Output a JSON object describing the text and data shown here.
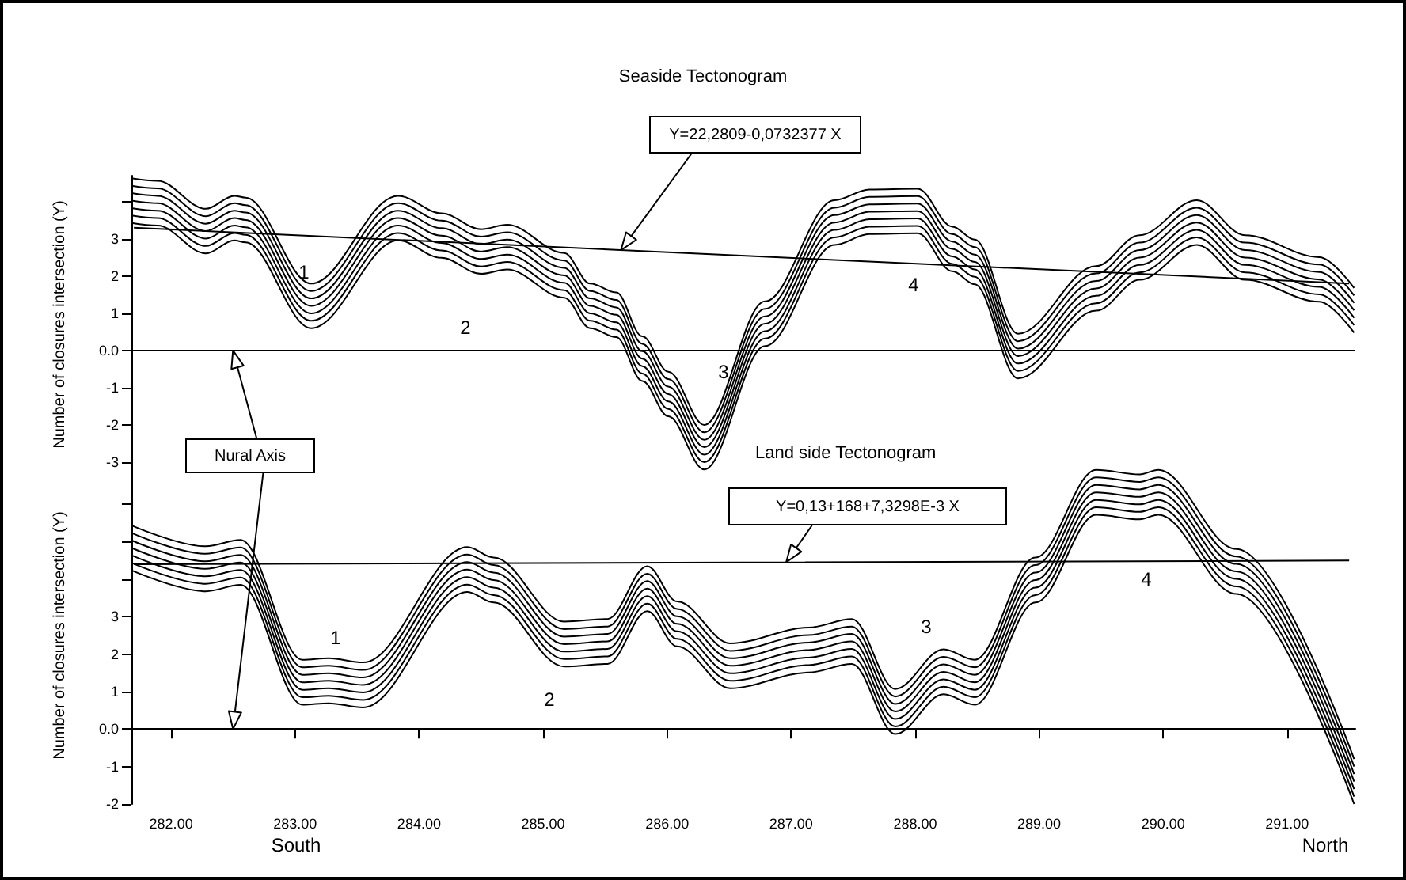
{
  "chart_data": [
    {
      "type": "line",
      "title": "Seaside Tectonogram",
      "ylabel": "Number of closures intersection (Y)",
      "tick_labels": "y",
      "xlim": [
        281.68,
        291.55
      ],
      "ylim": [
        -3.3,
        4.7
      ],
      "yticks": [
        -3,
        -2,
        -1,
        {
          "value": 0,
          "label": "0.0"
        },
        1,
        2,
        3,
        {
          "value": 4,
          "label": null
        }
      ],
      "x": [
        281.68,
        281.89,
        282.28,
        282.51,
        282.6,
        283.13,
        283.83,
        284.18,
        284.5,
        284.71,
        285.17,
        285.38,
        285.59,
        285.8,
        286.01,
        286.3,
        286.79,
        287.35,
        287.63,
        288.02,
        288.3,
        288.48,
        288.83,
        289.46,
        289.81,
        290.27,
        290.66,
        291.26,
        291.54
      ],
      "series": [
        {
          "color": "#000000",
          "values": [
            4.63,
            4.56,
            3.81,
            4.16,
            4.11,
            1.8,
            4.16,
            3.69,
            3.26,
            3.38,
            2.62,
            1.8,
            1.56,
            0.38,
            -0.57,
            -2.0,
            1.32,
            4.04,
            4.33,
            4.35,
            3.33,
            2.98,
            0.45,
            2.27,
            3.1,
            4.04,
            3.1,
            2.51,
            1.68
          ]
        },
        {
          "color": "#000000",
          "values": [
            4.43,
            4.36,
            3.61,
            3.96,
            3.91,
            1.6,
            3.96,
            3.49,
            3.06,
            3.18,
            2.42,
            1.6,
            1.36,
            0.18,
            -0.77,
            -2.2,
            1.12,
            3.84,
            4.13,
            4.15,
            3.13,
            2.78,
            0.25,
            2.07,
            2.9,
            3.84,
            2.9,
            2.31,
            1.48
          ]
        },
        {
          "color": "#000000",
          "values": [
            4.23,
            4.16,
            3.41,
            3.76,
            3.71,
            1.4,
            3.76,
            3.29,
            2.86,
            2.98,
            2.22,
            1.4,
            1.16,
            -0.02,
            -0.97,
            -2.4,
            0.92,
            3.64,
            3.93,
            3.95,
            2.93,
            2.58,
            0.05,
            1.87,
            2.7,
            3.64,
            2.7,
            2.11,
            1.28
          ]
        },
        {
          "color": "#000000",
          "values": [
            4.03,
            3.96,
            3.21,
            3.56,
            3.51,
            1.2,
            3.56,
            3.09,
            2.66,
            2.78,
            2.02,
            1.2,
            0.96,
            -0.22,
            -1.17,
            -2.6,
            0.72,
            3.44,
            3.73,
            3.75,
            2.73,
            2.38,
            -0.15,
            1.67,
            2.5,
            3.44,
            2.5,
            1.91,
            1.08
          ]
        },
        {
          "color": "#000000",
          "values": [
            3.83,
            3.76,
            3.01,
            3.36,
            3.31,
            1.0,
            3.36,
            2.89,
            2.46,
            2.58,
            1.82,
            1.0,
            0.76,
            -0.42,
            -1.37,
            -2.8,
            0.52,
            3.24,
            3.53,
            3.55,
            2.53,
            2.18,
            -0.35,
            1.47,
            2.3,
            3.24,
            2.3,
            1.71,
            0.88
          ]
        },
        {
          "color": "#000000",
          "values": [
            3.63,
            3.56,
            2.81,
            3.16,
            3.11,
            0.8,
            3.16,
            2.69,
            2.26,
            2.38,
            1.62,
            0.8,
            0.56,
            -0.62,
            -1.57,
            -3.0,
            0.32,
            3.04,
            3.33,
            3.35,
            2.33,
            1.98,
            -0.55,
            1.27,
            2.1,
            3.04,
            2.1,
            1.51,
            0.68
          ]
        },
        {
          "color": "#000000",
          "values": [
            3.43,
            3.36,
            2.61,
            2.96,
            2.91,
            0.6,
            2.96,
            2.49,
            2.06,
            2.18,
            1.42,
            0.6,
            0.36,
            -0.82,
            -1.77,
            -3.2,
            0.12,
            2.84,
            3.13,
            3.15,
            2.13,
            1.78,
            -0.75,
            1.07,
            1.9,
            2.84,
            1.9,
            1.31,
            0.48
          ]
        },
        {
          "type": "line",
          "color": "#000000",
          "x": [
            281.7,
            286.6,
            291.5
          ],
          "values": [
            3.3,
            2.55,
            1.8
          ]
        }
      ],
      "ref_lines": [
        {
          "axis": "y",
          "value": 0,
          "color": "#000000"
        }
      ],
      "annotations": [
        "Y=22,2809-0,0732377 X",
        "1",
        "2",
        "3",
        "4"
      ]
    },
    {
      "type": "line",
      "title": "Land side Tectonogram",
      "ylabel": "Number of closures intersection (Y)",
      "xlim": [
        281.68,
        291.55
      ],
      "xticks": [
        {
          "value": 282,
          "label": "282.00"
        },
        {
          "value": 283,
          "label": "283.00"
        },
        {
          "value": 284,
          "label": "284.00"
        },
        {
          "value": 285,
          "label": "285.00"
        },
        {
          "value": 286,
          "label": "286.00"
        },
        {
          "value": 287,
          "label": "287.00"
        },
        {
          "value": 288,
          "label": "288.00"
        },
        {
          "value": 289,
          "label": "289.00"
        },
        {
          "value": 290,
          "label": "290.00"
        },
        {
          "value": 291,
          "label": "291.00"
        }
      ],
      "ylim": [
        -2,
        7
      ],
      "yticks": [
        -2,
        -1,
        {
          "value": 0,
          "label": "0.0"
        },
        1,
        2,
        3,
        {
          "value": 4,
          "label": null
        },
        {
          "value": 5,
          "label": null
        },
        {
          "value": 6,
          "label": null
        }
      ],
      "x": [
        281.68,
        282.28,
        282.56,
        283.06,
        283.27,
        283.55,
        284.39,
        284.6,
        285.17,
        285.52,
        285.84,
        286.08,
        286.51,
        287.14,
        287.49,
        287.84,
        288.23,
        288.48,
        288.97,
        289.46,
        289.81,
        289.96,
        290.59,
        291.54
      ],
      "series": [
        {
          "color": "#000000",
          "values": [
            5.44,
            4.88,
            5.05,
            1.85,
            1.89,
            1.78,
            4.86,
            4.58,
            2.87,
            2.94,
            4.35,
            3.41,
            2.29,
            2.71,
            2.94,
            1.07,
            2.13,
            1.85,
            4.58,
            6.92,
            6.8,
            6.92,
            4.81,
            -0.8
          ]
        },
        {
          "color": "#000000",
          "values": [
            5.24,
            4.68,
            4.85,
            1.65,
            1.69,
            1.58,
            4.66,
            4.38,
            2.67,
            2.74,
            4.15,
            3.21,
            2.09,
            2.51,
            2.74,
            0.87,
            1.93,
            1.65,
            4.38,
            6.72,
            6.6,
            6.72,
            4.61,
            -1.0
          ]
        },
        {
          "color": "#000000",
          "values": [
            5.04,
            4.48,
            4.65,
            1.45,
            1.49,
            1.38,
            4.46,
            4.18,
            2.47,
            2.54,
            3.95,
            3.01,
            1.89,
            2.31,
            2.54,
            0.67,
            1.73,
            1.45,
            4.18,
            6.52,
            6.4,
            6.52,
            4.41,
            -1.2
          ]
        },
        {
          "color": "#000000",
          "values": [
            4.84,
            4.28,
            4.45,
            1.25,
            1.29,
            1.18,
            4.26,
            3.98,
            2.27,
            2.34,
            3.75,
            2.81,
            1.69,
            2.11,
            2.34,
            0.47,
            1.53,
            1.25,
            3.98,
            6.32,
            6.2,
            6.32,
            4.21,
            -1.4
          ]
        },
        {
          "color": "#000000",
          "values": [
            4.64,
            4.08,
            4.25,
            1.05,
            1.09,
            0.98,
            4.06,
            3.78,
            2.07,
            2.14,
            3.55,
            2.61,
            1.49,
            1.91,
            2.14,
            0.27,
            1.33,
            1.05,
            3.78,
            6.12,
            6.0,
            6.12,
            4.01,
            -1.6
          ]
        },
        {
          "color": "#000000",
          "values": [
            4.44,
            3.88,
            4.05,
            0.85,
            0.89,
            0.78,
            3.86,
            3.58,
            1.87,
            1.94,
            3.35,
            2.41,
            1.29,
            1.71,
            1.94,
            0.07,
            1.13,
            0.85,
            3.58,
            5.92,
            5.8,
            5.92,
            3.81,
            -1.8
          ]
        },
        {
          "color": "#000000",
          "values": [
            4.24,
            3.68,
            3.85,
            0.65,
            0.69,
            0.58,
            3.66,
            3.38,
            1.67,
            1.74,
            3.15,
            2.21,
            1.09,
            1.51,
            1.74,
            -0.13,
            0.93,
            0.65,
            3.38,
            5.72,
            5.6,
            5.72,
            3.61,
            -2.0
          ]
        },
        {
          "type": "line",
          "color": "#000000",
          "x": [
            281.7,
            286.6,
            291.5
          ],
          "values": [
            4.4,
            4.45,
            4.5
          ]
        }
      ],
      "ref_lines": [
        {
          "axis": "y",
          "value": 0,
          "color": "#000000"
        }
      ],
      "annotations": [
        "Y=0,13+168+7,3298E-3 X",
        "Nural Axis",
        "South",
        "North",
        "1",
        "2",
        "3",
        "4"
      ]
    }
  ]
}
